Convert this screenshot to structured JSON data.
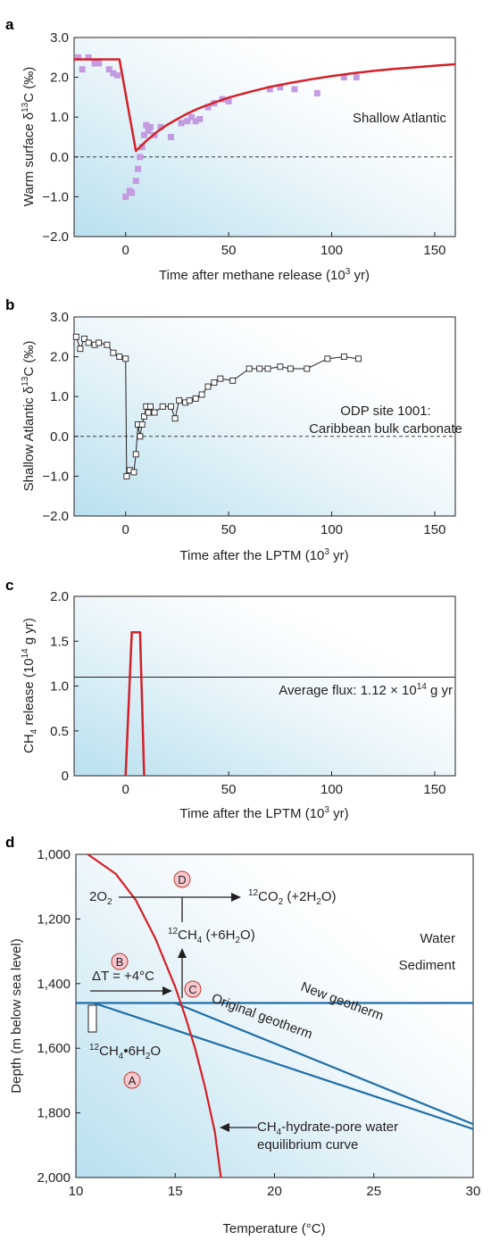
{
  "chart_data": [
    {
      "panel": "a",
      "type": "scatter",
      "ylabel_pre": "Warm surface δ",
      "ylabel_sup": "13",
      "ylabel_post": "C (‰)",
      "xlabel_pre": "Time after methane release (10",
      "xlabel_sup": "3",
      "xlabel_post": " yr)",
      "xlim": [
        -25,
        160
      ],
      "ylim": [
        -2,
        3
      ],
      "xticks": [
        "0",
        "50",
        "100",
        "150"
      ],
      "yticks": [
        "3.0",
        "2.0",
        "1.0",
        "0.0",
        "−1.0",
        "−2.0"
      ],
      "annotation": "Shallow Atlantic",
      "reference_line_y": 0,
      "colors": {
        "model": "#d42027",
        "data": "#c39be0"
      },
      "series": [
        {
          "type": "line",
          "x": [
            -25,
            -3,
            5,
            10,
            15,
            20,
            25,
            30,
            35,
            40,
            50,
            60,
            70,
            80,
            90,
            100,
            110,
            120,
            130,
            140,
            150,
            160
          ],
          "y": [
            2.45,
            2.45,
            0.15,
            0.4,
            0.62,
            0.8,
            0.95,
            1.09,
            1.21,
            1.31,
            1.49,
            1.63,
            1.76,
            1.86,
            1.95,
            2.03,
            2.1,
            2.16,
            2.21,
            2.25,
            2.29,
            2.33
          ]
        },
        {
          "type": "scatter",
          "points": [
            [
              -23,
              2.5
            ],
            [
              -21,
              2.2
            ],
            [
              -18,
              2.5
            ],
            [
              -15,
              2.35
            ],
            [
              -13,
              2.35
            ],
            [
              -8,
              2.2
            ],
            [
              -6,
              2.1
            ],
            [
              -4,
              2.05
            ],
            [
              0,
              -1.0
            ],
            [
              2,
              -0.85
            ],
            [
              3,
              -0.9
            ],
            [
              5,
              -0.6
            ],
            [
              6,
              -0.3
            ],
            [
              7,
              0.0
            ],
            [
              8,
              0.25
            ],
            [
              9,
              0.55
            ],
            [
              10,
              0.8
            ],
            [
              11,
              0.65
            ],
            [
              12,
              0.75
            ],
            [
              14,
              0.55
            ],
            [
              17,
              0.75
            ],
            [
              22,
              0.5
            ],
            [
              27,
              0.85
            ],
            [
              30,
              0.9
            ],
            [
              32,
              1.0
            ],
            [
              34,
              0.9
            ],
            [
              36,
              0.95
            ],
            [
              40,
              1.25
            ],
            [
              43,
              1.35
            ],
            [
              47,
              1.45
            ],
            [
              50,
              1.4
            ],
            [
              70,
              1.7
            ],
            [
              75,
              1.75
            ],
            [
              82,
              1.7
            ],
            [
              93,
              1.6
            ],
            [
              106,
              2.0
            ],
            [
              112,
              2.0
            ]
          ]
        }
      ]
    },
    {
      "panel": "b",
      "type": "line",
      "ylabel_pre": "Shallow Atlantic δ",
      "ylabel_sup": "13",
      "ylabel_post": "C (‰)",
      "xlabel_pre": "Time after the LPTM (10",
      "xlabel_sup": "3",
      "xlabel_post": " yr)",
      "xlim": [
        -25,
        160
      ],
      "ylim": [
        -2,
        3
      ],
      "xticks": [
        "0",
        "50",
        "100",
        "150"
      ],
      "yticks": [
        "3.0",
        "2.0",
        "1.0",
        "0.0",
        "−1.0",
        "−2.0"
      ],
      "annotation_lines": [
        "ODP site 1001:",
        "Caribbean bulk carbonate"
      ],
      "reference_line_y": 0,
      "series": [
        {
          "x": [
            -24,
            -22,
            -20,
            -18,
            -15,
            -13,
            -9,
            -6,
            -3,
            0,
            0.5,
            2,
            4,
            5,
            6,
            7,
            8,
            9,
            10,
            11,
            12,
            14,
            18,
            22,
            24,
            26,
            29,
            31,
            34,
            37,
            40,
            43,
            46,
            52,
            60,
            65,
            69,
            75,
            80,
            88,
            98,
            106,
            113
          ],
          "y": [
            2.5,
            2.2,
            2.45,
            2.35,
            2.3,
            2.35,
            2.3,
            2.1,
            2.0,
            1.95,
            -1.0,
            -0.85,
            -0.9,
            -0.45,
            0.3,
            0.0,
            0.3,
            0.5,
            0.75,
            0.6,
            0.75,
            0.6,
            0.75,
            0.75,
            0.45,
            0.9,
            0.85,
            0.9,
            0.95,
            1.05,
            1.25,
            1.35,
            1.45,
            1.4,
            1.7,
            1.7,
            1.7,
            1.75,
            1.7,
            1.7,
            1.95,
            2.0,
            1.95
          ]
        }
      ]
    },
    {
      "panel": "c",
      "type": "line",
      "ylabel_pre": "CH",
      "ylabel_sub": "4",
      "ylabel_mid": " release (10",
      "ylabel_sup": "14",
      "ylabel_post": " g yr)",
      "xlabel_pre": "Time after the LPTM (10",
      "xlabel_sup": "3",
      "xlabel_post": " yr)",
      "xlim": [
        -25,
        160
      ],
      "ylim": [
        0,
        2
      ],
      "xticks": [
        "0",
        "50",
        "100",
        "150"
      ],
      "yticks": [
        "2.0",
        "1.5",
        "1.0",
        "0.5",
        "0"
      ],
      "avg_line_y": 1.1,
      "annotation_pre": "Average flux: 1.12 × 10",
      "annotation_sup": "14",
      "annotation_post": " g yr",
      "colors": {
        "release": "#d42027"
      },
      "series": [
        {
          "x": [
            0,
            3,
            7,
            9
          ],
          "y": [
            0,
            1.6,
            1.6,
            0
          ]
        }
      ]
    },
    {
      "panel": "d",
      "type": "line",
      "ylabel": "Depth (m below sea level)",
      "xlabel": "Temperature (°C)",
      "xlim": [
        10,
        30
      ],
      "ylim": [
        1000,
        2000
      ],
      "xticks": [
        "10",
        "15",
        "20",
        "25",
        "30"
      ],
      "yticks": [
        "1,000",
        "1,200",
        "1,400",
        "1,600",
        "1,800",
        "2,000"
      ],
      "colors": {
        "geotherm": "#1f6ea8",
        "equilibrium": "#d42027",
        "marker_fill": "#f6c8cf",
        "marker_stroke": "#c0392b"
      },
      "series": [
        {
          "name": "Water / Sediment boundary",
          "x": [
            10,
            30
          ],
          "y": [
            1460,
            1460
          ]
        },
        {
          "name": "Original geotherm",
          "x": [
            10.9,
            30
          ],
          "y": [
            1460,
            1850
          ]
        },
        {
          "name": "New geotherm",
          "x": [
            15,
            30
          ],
          "y": [
            1460,
            1835
          ]
        },
        {
          "name": "CH4-hydrate-pore water equilibrium curve",
          "x": [
            10.6,
            12,
            13,
            14,
            15,
            15.5,
            16,
            16.5,
            17,
            17.3
          ],
          "y": [
            1000,
            1060,
            1140,
            1260,
            1410,
            1500,
            1600,
            1720,
            1860,
            2000
          ]
        }
      ],
      "labels": {
        "water": "Water",
        "sediment": "Sediment",
        "new_geotherm": "New geotherm",
        "original_geotherm": "Original geotherm",
        "o2_pre": "2O",
        "o2_sub": "2",
        "co2_sup": "12",
        "co2_pre": "CO",
        "co2_sub": "2",
        "co2_post": " (+2H",
        "co2_sub2": "2",
        "co2_end": "O)",
        "ch4_sup": "12",
        "ch4_pre": "CH",
        "ch4_sub": "4",
        "ch4_post": " (+6H",
        "ch4_sub2": "2",
        "ch4_end": "O)",
        "delta_t": "ΔT = +4°C",
        "hydrate_sup": "12",
        "hydrate_pre": "CH",
        "hydrate_sub": "4",
        "hydrate_dot": "•",
        "hydrate_post": "6H",
        "hydrate_sub2": "2",
        "hydrate_end": "O",
        "eq_line1_pre": "CH",
        "eq_line1_sub": "4",
        "eq_line1_post": "-hydrate-pore water",
        "eq_line2": "equilibrium curve",
        "markers": [
          "A",
          "B",
          "C",
          "D"
        ]
      }
    }
  ]
}
